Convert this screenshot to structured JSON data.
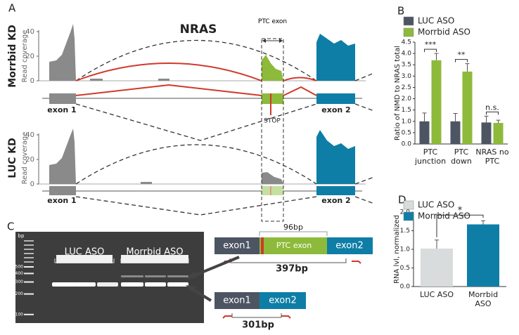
{
  "panel_a": {
    "label": "A",
    "title": "NRAS",
    "rows": [
      "Morrbid KD",
      "LUC KD"
    ],
    "ylabel": "Read coverage",
    "yticks": [
      0,
      20,
      40
    ],
    "ptc_exon": "PTC exon",
    "stop": "STOP",
    "exon1": "exon 1",
    "exon2": "exon 2"
  },
  "panel_c": {
    "label": "C",
    "ladder_unit": "bp",
    "ladder": [
      500,
      400,
      300,
      200,
      100
    ],
    "groups": [
      "LUC ASO",
      "Morrbid ASO"
    ],
    "long_product": {
      "exon1": "exon1",
      "ptc": "PTC exon",
      "exon2": "exon2",
      "ptc_length": "96bp",
      "length": "397bp"
    },
    "short_product": {
      "exon1": "exon1",
      "exon2": "exon2",
      "length": "301bp"
    }
  },
  "chart_data": [
    {
      "type": "bar",
      "label": "B",
      "ylabel": "Ratio of NMD to NRAS total",
      "categories": [
        "PTC junction",
        "PTC down",
        "NRAS no PTC"
      ],
      "series": [
        {
          "name": "LUC ASO",
          "color": "#4d5563",
          "values": [
            1.0,
            1.0,
            0.95
          ],
          "errors": [
            0.37,
            0.35,
            0.28
          ]
        },
        {
          "name": "Morrbid ASO",
          "color": "#8dba3a",
          "values": [
            3.7,
            3.2,
            0.93
          ],
          "errors": [
            0.3,
            0.35,
            0.12
          ]
        }
      ],
      "annotations": [
        "***",
        "**",
        "n.s."
      ],
      "ylim": [
        0,
        4.5
      ],
      "yticks": [
        {
          "value": 0,
          "label": "0.0"
        },
        {
          "value": 0.5,
          "label": "0.5"
        },
        {
          "value": 1,
          "label": "1.0"
        },
        {
          "value": 1.5,
          "label": "1.5"
        },
        {
          "value": 2,
          "label": "2.0"
        },
        {
          "value": 2.5,
          "label": "2.5"
        },
        {
          "value": 3,
          "label": "3.0"
        },
        {
          "value": 3.5,
          "label": "3.5"
        },
        {
          "value": 4,
          "label": "4.0"
        },
        {
          "value": 4.5,
          "label": "4.5"
        }
      ],
      "legend": "top-left"
    },
    {
      "type": "bar",
      "label": "D",
      "ylabel": "RNA lvl, normalized",
      "categories": [
        "LUC ASO",
        "Morrbid ASO"
      ],
      "values": [
        1.02,
        1.67
      ],
      "errors": [
        0.23,
        0.1
      ],
      "colors": [
        "#d9dcdc",
        "#0e7ea6"
      ],
      "annotations": [
        "*"
      ],
      "ylim": [
        0,
        2
      ],
      "yticks": [
        {
          "value": 0,
          "label": "0.0"
        },
        {
          "value": 0.5,
          "label": "0.5"
        },
        {
          "value": 1,
          "label": "1.0"
        },
        {
          "value": 1.5,
          "label": "1.5"
        },
        {
          "value": 2,
          "label": "2.0"
        }
      ],
      "legend": "top-left"
    }
  ]
}
